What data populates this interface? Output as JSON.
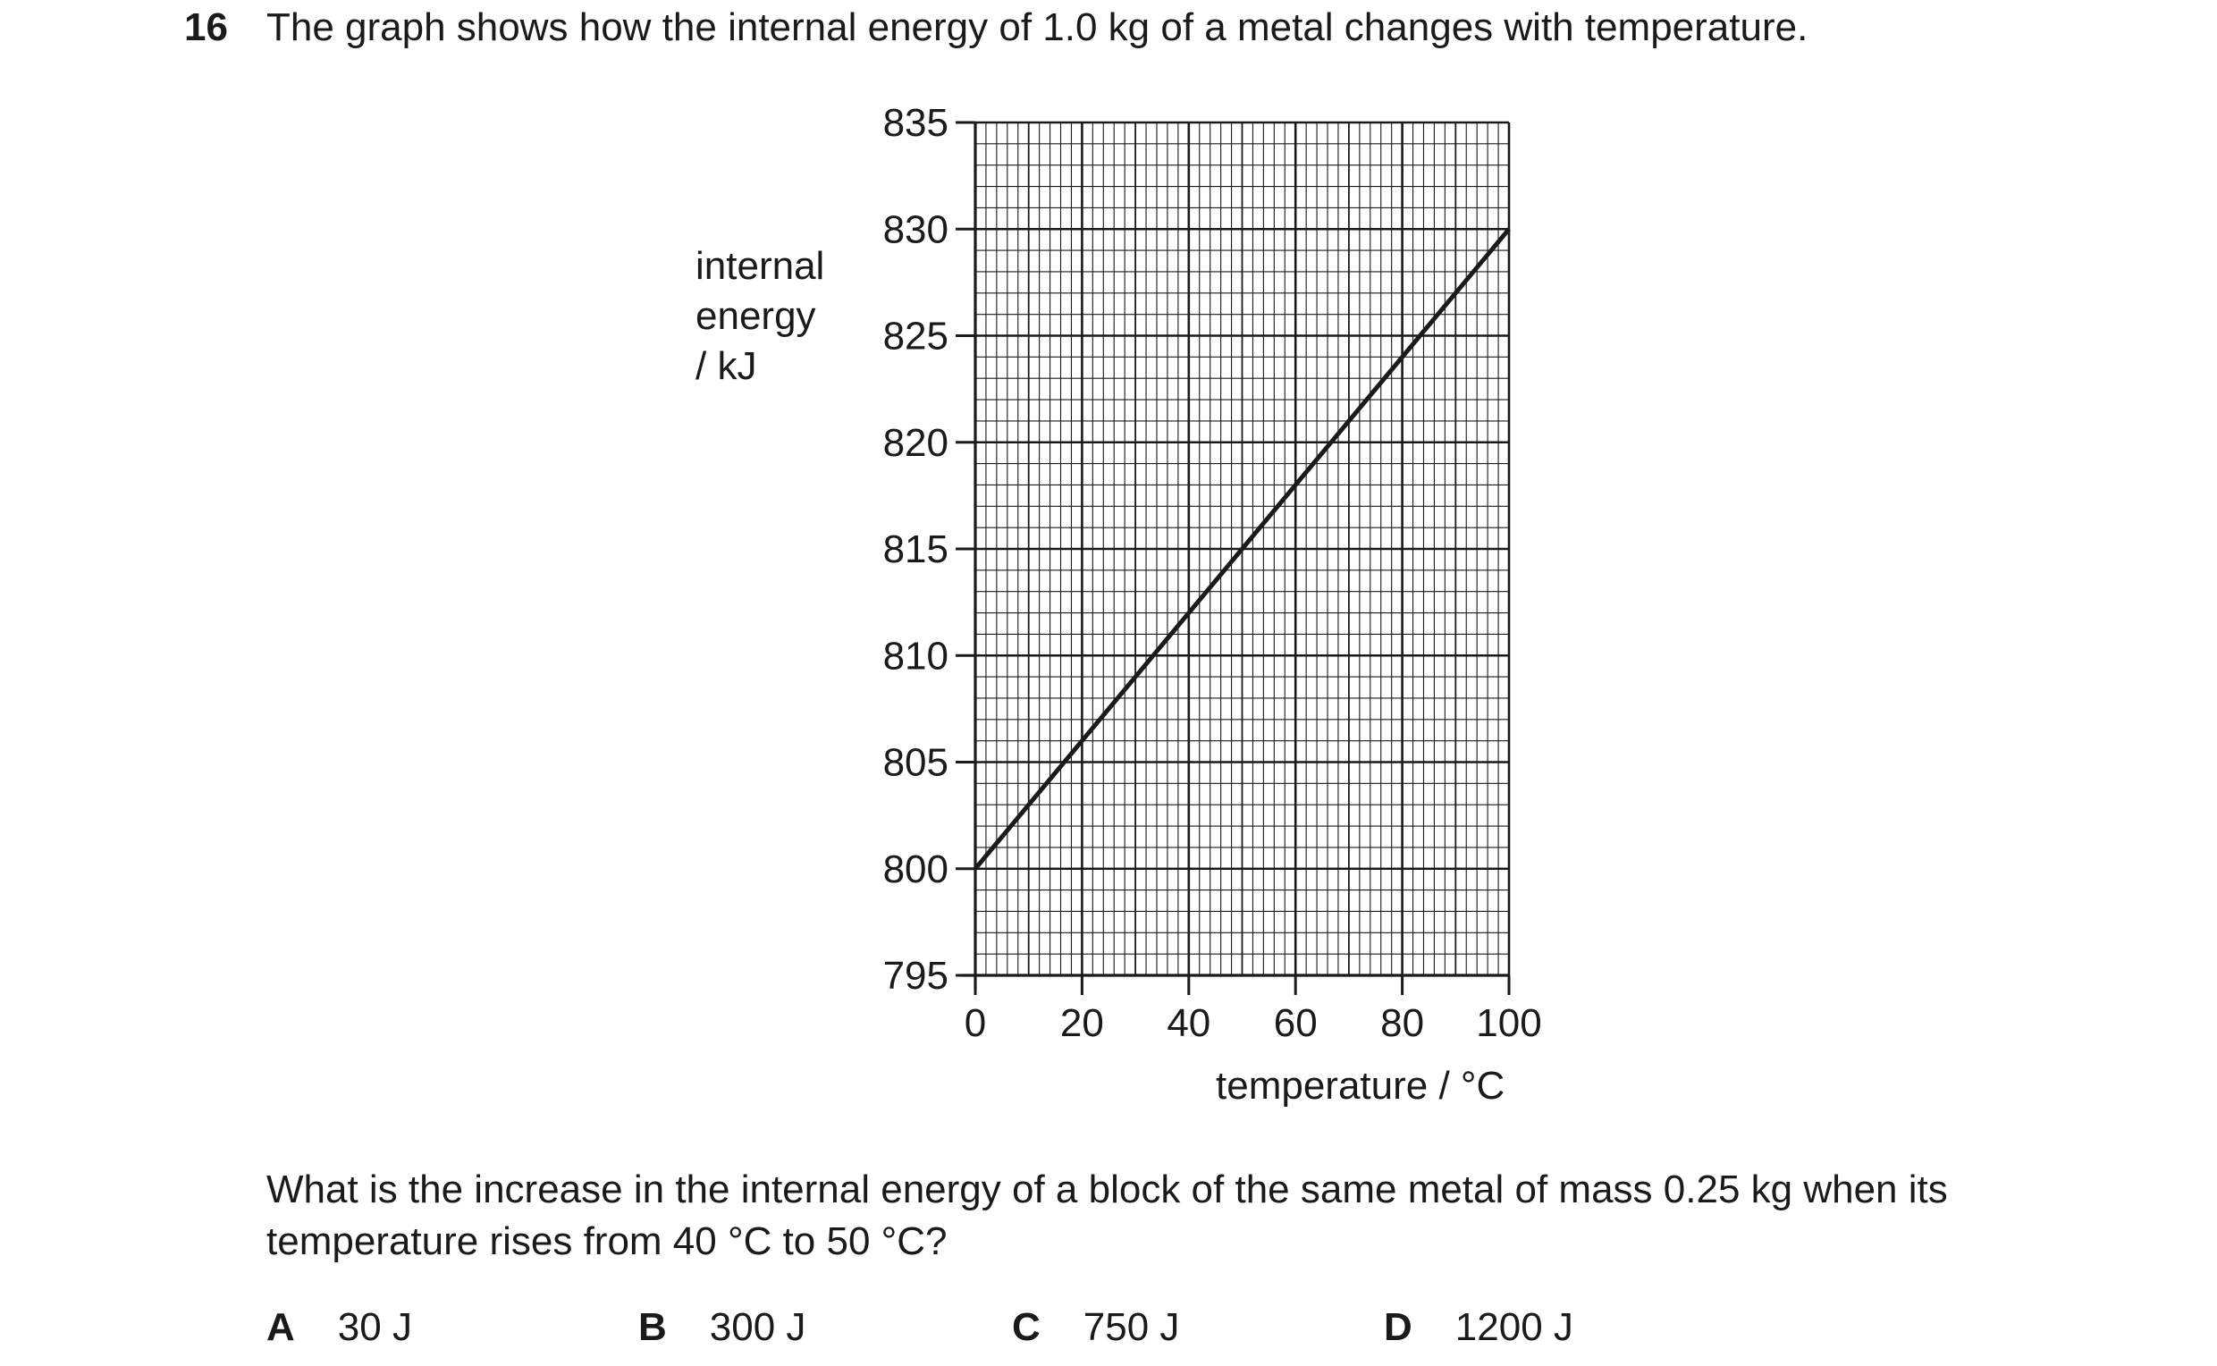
{
  "question": {
    "number": "16",
    "stem": "The graph shows how the internal energy of 1.0 kg of a metal changes with temperature.",
    "prompt_line1": "What is the increase in the internal energy of a block of the same metal of mass 0.25 kg when its",
    "prompt_line2": "temperature rises from 40 °C to 50 °C?"
  },
  "options": [
    {
      "letter": "A",
      "value": "30 J"
    },
    {
      "letter": "B",
      "value": "300 J"
    },
    {
      "letter": "C",
      "value": "750 J"
    },
    {
      "letter": "D",
      "value": "1200 J"
    }
  ],
  "chart_data": {
    "type": "line",
    "ylabel_lines": [
      "internal",
      "energy",
      "/ kJ"
    ],
    "xlabel": "temperature / °C",
    "xlim": [
      0,
      100
    ],
    "ylim": [
      795,
      835
    ],
    "x_ticks": [
      "0",
      "20",
      "40",
      "60",
      "80",
      "100"
    ],
    "y_ticks": [
      "795",
      "800",
      "805",
      "810",
      "815",
      "820",
      "825",
      "830",
      "835"
    ],
    "grid": true,
    "series": [
      {
        "x": [
          0,
          100
        ],
        "y": [
          800,
          830
        ]
      }
    ]
  }
}
